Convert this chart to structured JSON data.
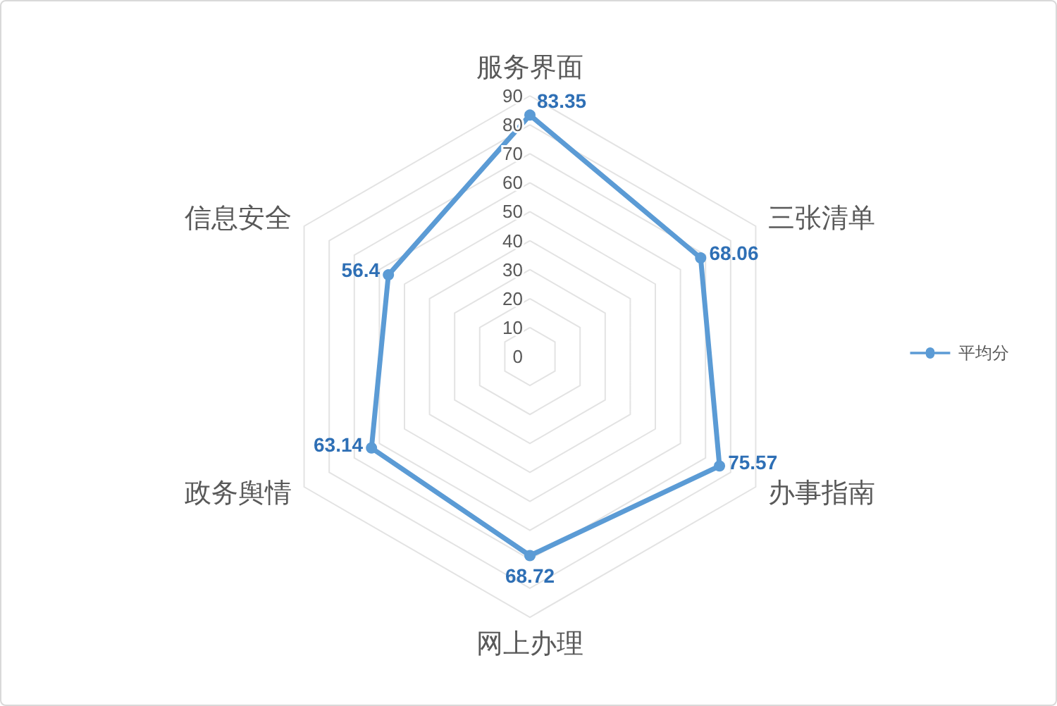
{
  "chart_data": {
    "type": "radar",
    "categories": [
      "服务界面",
      "三张清单",
      "办事指南",
      "网上办理",
      "政务舆情",
      "信息安全"
    ],
    "series": [
      {
        "name": "平均分",
        "color": "#5b9bd5",
        "values": [
          83.35,
          68.06,
          75.57,
          68.72,
          63.14,
          56.4
        ]
      }
    ],
    "ylim": [
      0,
      90
    ],
    "yticks": [
      0,
      10,
      20,
      30,
      40,
      50,
      60,
      70,
      80,
      90
    ],
    "grid": true,
    "legend": "right",
    "marker": "circle",
    "line_style": "solid",
    "data_labels": true
  }
}
